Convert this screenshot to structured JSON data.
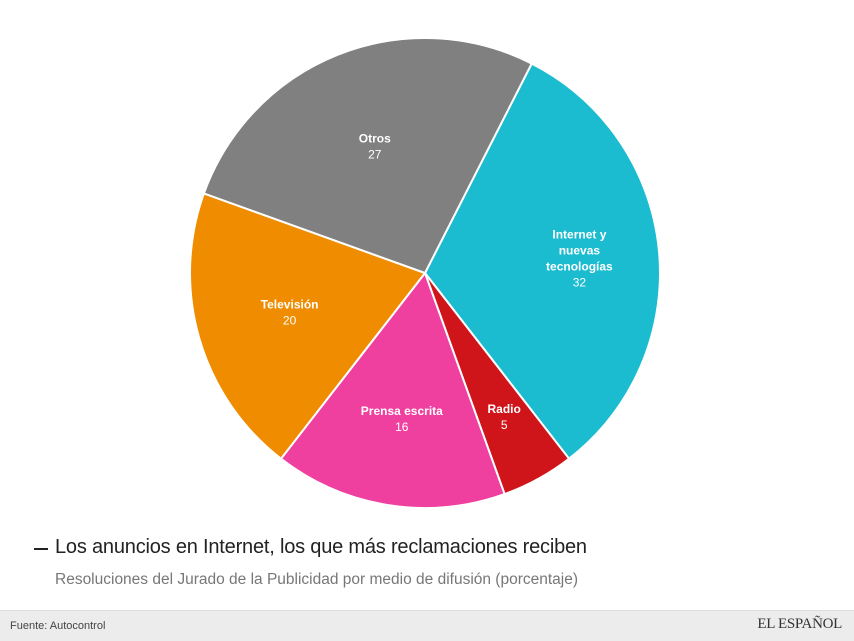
{
  "chart_data": {
    "type": "pie",
    "title": "Los anuncios en Internet, los que más reclamaciones reciben",
    "subtitle": "Resoluciones del Jurado de la Publicidad por medio de difusión (porcentaje)",
    "start_angle_deg": -63,
    "slices": [
      {
        "label_lines": [
          "Internet y",
          "nuevas",
          "tecnologías"
        ],
        "value": 32,
        "color": "#1bbbd0"
      },
      {
        "label_lines": [
          "Radio"
        ],
        "value": 5,
        "color": "#d0151a"
      },
      {
        "label_lines": [
          "Prensa escrita"
        ],
        "value": 16,
        "color": "#ef3f9f"
      },
      {
        "label_lines": [
          "Televisión"
        ],
        "value": 20,
        "color": "#ef8c00"
      },
      {
        "label_lines": [
          "Otros"
        ],
        "value": 27,
        "color": "#808080"
      }
    ]
  },
  "footer": {
    "source": "Fuente: Autocontrol",
    "brand": "EL ESPAÑOL"
  }
}
